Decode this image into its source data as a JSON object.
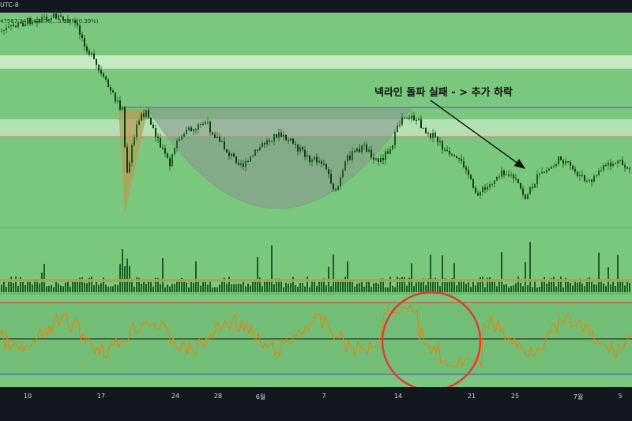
{
  "header": {
    "symbol_fragment": "UTC-8"
  },
  "ohlc_readout": {
    "text": "47567.34  종47876  ...5.98  (+0.39%)"
  },
  "annotation": {
    "text": "넥라인 돌파 실패 - > 추가 하락"
  },
  "colors": {
    "panel_background": "#7ac77e",
    "bull_candle": "#1b5e20",
    "bear_candle": "#0f3d12",
    "resistance_band": "#d9f2d5",
    "neckline": "#7b6cc4",
    "cup_fill": "#8a9a8e",
    "triangle_fill": "#b79c5a",
    "rsi_line": "#f57c00",
    "rsi_upper": "#e53935",
    "rsi_lower": "#3f51b5",
    "highlight_circle": "#e53935",
    "volume_ma": "#b5a24a"
  },
  "chart_data": {
    "type": "candlestick",
    "x_tick_labels": [
      "10",
      "17",
      "24",
      "28",
      "6월",
      "7",
      "14",
      "21",
      "25",
      "7월",
      "5"
    ],
    "features": [
      "cup pattern below neckline",
      "descending arrow after failed neckline breakout",
      "RSI panel with highlighted drop",
      "volume histogram"
    ]
  }
}
